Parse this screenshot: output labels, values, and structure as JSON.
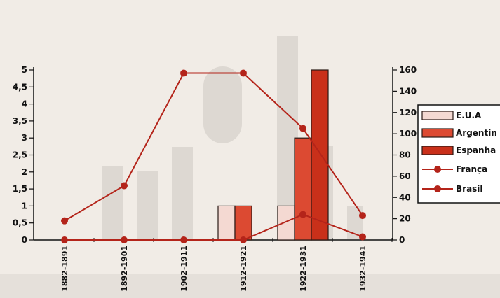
{
  "chart_data": {
    "type": "bar",
    "categories": [
      "1882-1891",
      "1892-1901",
      "1902-1911",
      "1912-1921",
      "1922-1931",
      "1932-1941"
    ],
    "left_axis": {
      "ylim": [
        0,
        5
      ],
      "ticks": [
        "0",
        "0,5",
        "1",
        "1,5",
        "2",
        "2,5",
        "3",
        "3,5",
        "4",
        "4,5",
        "5"
      ]
    },
    "right_axis": {
      "ylim": [
        0,
        160
      ],
      "ticks": [
        "0",
        "20",
        "40",
        "60",
        "80",
        "100",
        "120",
        "140",
        "160"
      ]
    },
    "series": [
      {
        "name": "E.U.A",
        "kind": "bar",
        "axis": "left",
        "color": "#f4d9d2",
        "values": [
          0,
          0,
          0,
          1,
          1,
          0
        ]
      },
      {
        "name": "Argentina",
        "kind": "bar",
        "axis": "left",
        "color": "#dc4a32",
        "values": [
          0,
          0,
          0,
          1,
          3,
          0
        ]
      },
      {
        "name": "Espanha",
        "kind": "bar",
        "axis": "left",
        "color": "#c9301a",
        "values": [
          0,
          0,
          0,
          0,
          5,
          0
        ]
      },
      {
        "name": "França",
        "kind": "line",
        "axis": "right",
        "color": "#b4241a",
        "values": [
          18,
          51,
          157,
          157,
          105,
          23
        ]
      },
      {
        "name": "Brasil",
        "kind": "line",
        "axis": "right",
        "color": "#b4241a",
        "values": [
          0,
          0,
          0,
          0,
          24,
          3
        ]
      }
    ],
    "legend": [
      "E.U.A",
      "Argentin",
      "Espanha",
      "França",
      "Brasil"
    ],
    "legend_position": "right"
  }
}
